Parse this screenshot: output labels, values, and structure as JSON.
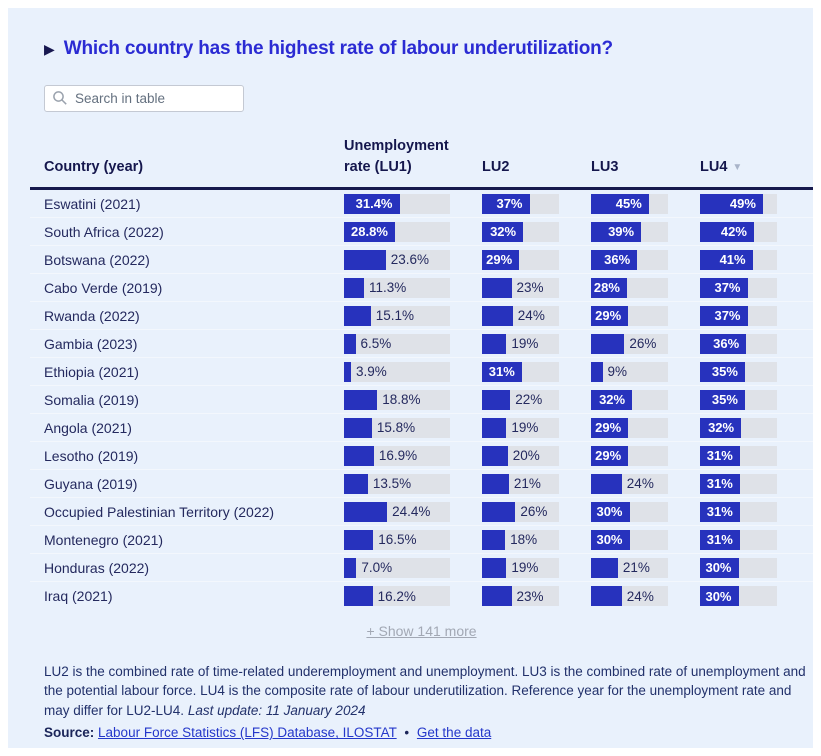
{
  "title": {
    "marker": "▶",
    "text": "Which country has the highest rate of labour underutilization?"
  },
  "search": {
    "placeholder": "Search in table"
  },
  "table": {
    "columns": [
      {
        "label": "Country (year)"
      },
      {
        "label": "Unemployment rate (LU1)"
      },
      {
        "label": "LU2"
      },
      {
        "label": "LU3"
      },
      {
        "label": "LU4",
        "sort": "desc",
        "sort_icon": "▼"
      }
    ],
    "scale_max": 60,
    "rows": [
      {
        "country": "Eswatini (2021)",
        "lu1": {
          "value": 31.4,
          "label": "31.4%"
        },
        "lu2": {
          "value": 37,
          "label": "37%"
        },
        "lu3": {
          "value": 45,
          "label": "45%"
        },
        "lu4": {
          "value": 49,
          "label": "49%"
        }
      },
      {
        "country": "South Africa (2022)",
        "lu1": {
          "value": 28.8,
          "label": "28.8%"
        },
        "lu2": {
          "value": 32,
          "label": "32%"
        },
        "lu3": {
          "value": 39,
          "label": "39%"
        },
        "lu4": {
          "value": 42,
          "label": "42%"
        }
      },
      {
        "country": "Botswana (2022)",
        "lu1": {
          "value": 23.6,
          "label": "23.6%"
        },
        "lu2": {
          "value": 29,
          "label": "29%"
        },
        "lu3": {
          "value": 36,
          "label": "36%"
        },
        "lu4": {
          "value": 41,
          "label": "41%"
        }
      },
      {
        "country": "Cabo Verde (2019)",
        "lu1": {
          "value": 11.3,
          "label": "11.3%"
        },
        "lu2": {
          "value": 23,
          "label": "23%"
        },
        "lu3": {
          "value": 28,
          "label": "28%"
        },
        "lu4": {
          "value": 37,
          "label": "37%"
        }
      },
      {
        "country": "Rwanda (2022)",
        "lu1": {
          "value": 15.1,
          "label": "15.1%"
        },
        "lu2": {
          "value": 24,
          "label": "24%"
        },
        "lu3": {
          "value": 29,
          "label": "29%"
        },
        "lu4": {
          "value": 37,
          "label": "37%"
        }
      },
      {
        "country": "Gambia (2023)",
        "lu1": {
          "value": 6.5,
          "label": "6.5%"
        },
        "lu2": {
          "value": 19,
          "label": "19%"
        },
        "lu3": {
          "value": 26,
          "label": "26%"
        },
        "lu4": {
          "value": 36,
          "label": "36%"
        }
      },
      {
        "country": "Ethiopia (2021)",
        "lu1": {
          "value": 3.9,
          "label": "3.9%"
        },
        "lu2": {
          "value": 31,
          "label": "31%"
        },
        "lu3": {
          "value": 9,
          "label": "9%"
        },
        "lu4": {
          "value": 35,
          "label": "35%"
        }
      },
      {
        "country": "Somalia (2019)",
        "lu1": {
          "value": 18.8,
          "label": "18.8%"
        },
        "lu2": {
          "value": 22,
          "label": "22%"
        },
        "lu3": {
          "value": 32,
          "label": "32%"
        },
        "lu4": {
          "value": 35,
          "label": "35%"
        }
      },
      {
        "country": "Angola (2021)",
        "lu1": {
          "value": 15.8,
          "label": "15.8%"
        },
        "lu2": {
          "value": 19,
          "label": "19%"
        },
        "lu3": {
          "value": 29,
          "label": "29%"
        },
        "lu4": {
          "value": 32,
          "label": "32%"
        }
      },
      {
        "country": "Lesotho (2019)",
        "lu1": {
          "value": 16.9,
          "label": "16.9%"
        },
        "lu2": {
          "value": 20,
          "label": "20%"
        },
        "lu3": {
          "value": 29,
          "label": "29%"
        },
        "lu4": {
          "value": 31,
          "label": "31%"
        }
      },
      {
        "country": "Guyana (2019)",
        "lu1": {
          "value": 13.5,
          "label": "13.5%"
        },
        "lu2": {
          "value": 21,
          "label": "21%"
        },
        "lu3": {
          "value": 24,
          "label": "24%"
        },
        "lu4": {
          "value": 31,
          "label": "31%"
        }
      },
      {
        "country": "Occupied Palestinian Territory (2022)",
        "lu1": {
          "value": 24.4,
          "label": "24.4%"
        },
        "lu2": {
          "value": 26,
          "label": "26%"
        },
        "lu3": {
          "value": 30,
          "label": "30%"
        },
        "lu4": {
          "value": 31,
          "label": "31%"
        }
      },
      {
        "country": "Montenegro (2021)",
        "lu1": {
          "value": 16.5,
          "label": "16.5%"
        },
        "lu2": {
          "value": 18,
          "label": "18%"
        },
        "lu3": {
          "value": 30,
          "label": "30%"
        },
        "lu4": {
          "value": 31,
          "label": "31%"
        }
      },
      {
        "country": "Honduras (2022)",
        "lu1": {
          "value": 7.0,
          "label": "7.0%"
        },
        "lu2": {
          "value": 19,
          "label": "19%"
        },
        "lu3": {
          "value": 21,
          "label": "21%"
        },
        "lu4": {
          "value": 30,
          "label": "30%"
        }
      },
      {
        "country": "Iraq (2021)",
        "lu1": {
          "value": 16.2,
          "label": "16.2%"
        },
        "lu2": {
          "value": 23,
          "label": "23%"
        },
        "lu3": {
          "value": 24,
          "label": "24%"
        },
        "lu4": {
          "value": 30,
          "label": "30%"
        }
      }
    ]
  },
  "show_more": {
    "label": "+ Show 141 more"
  },
  "footnote": {
    "text": "LU2 is the combined rate of time-related underemployment and unemployment. LU3 is the combined rate of unemployment and the potential labour force. LU4 is the composite rate of labour underutilization. Reference year for the unemployment rate and may differ for LU2-LU4.",
    "last_update": "Last update: 11 January 2024"
  },
  "source": {
    "label": "Source:",
    "link1": "Labour Force Statistics (LFS) Database, ILOSTAT",
    "separator": "•",
    "link2": "Get the data"
  },
  "colors": {
    "bar_fill": "#2732bd",
    "bar_track": "#dfe2e8",
    "card_bg": "#e9f1fc",
    "title": "#2b2bd3",
    "heading_navy": "#15174d",
    "text_navy": "#24295e",
    "link": "#2437ca",
    "muted": "#a2a8b4",
    "header_rule": "#171a4d"
  }
}
